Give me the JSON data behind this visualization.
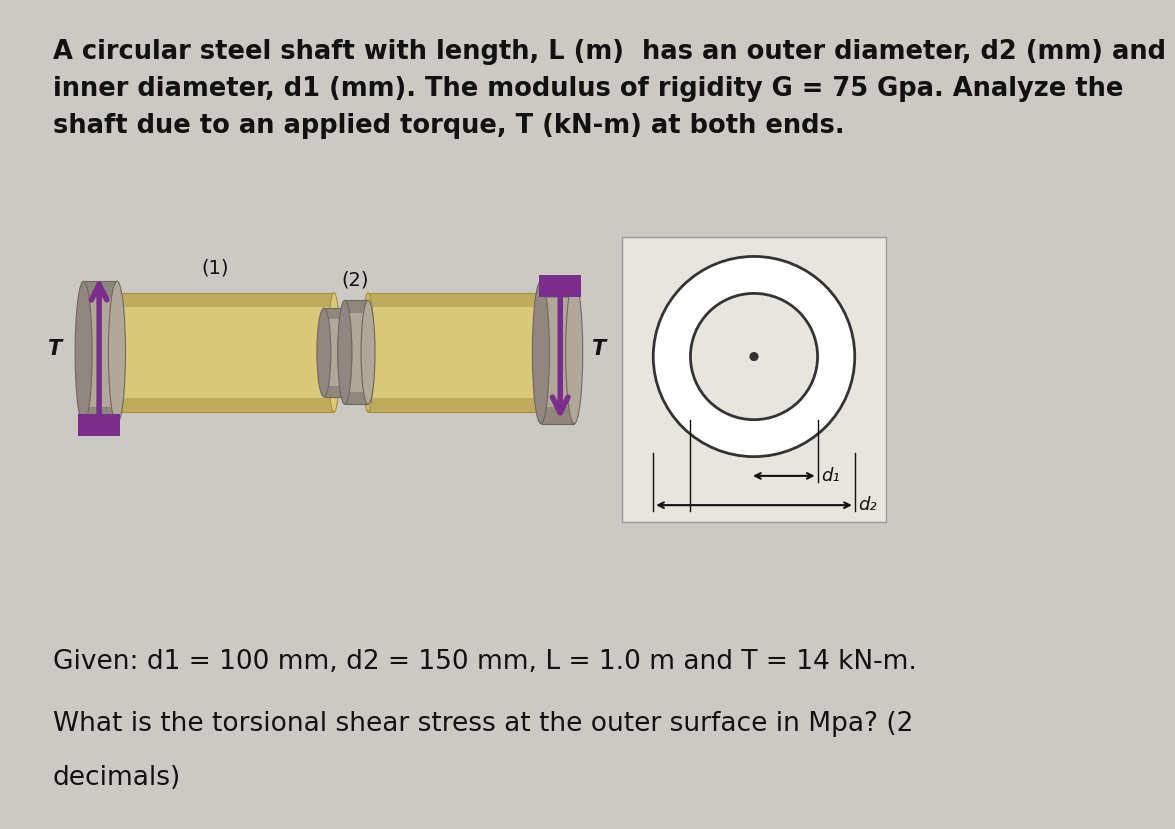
{
  "bg_color": "#ccc9c4",
  "title_text": "A circular steel shaft with length, L (m)  has an outer diameter, d2 (mm) and\ninner diameter, d1 (mm). The modulus of rigidity G = 75 Gpa. Analyze the\nshaft due to an applied torque, T (kN-m) at both ends.",
  "given_text": "Given: d1 = 100 mm, d2 = 150 mm, L = 1.0 m and T = 14 kN-m.",
  "question_line1": "What is the torsional shear stress at the outer surface in Mpa? (2",
  "question_line2": "decimals)",
  "arrow_color": "#7b2d8b",
  "label_1": "(1)",
  "label_2": "(2)",
  "label_T": "T",
  "label_d1": "d₁",
  "label_d2": "d₂",
  "shaft_tan_light": "#d8c878",
  "shaft_tan_mid": "#c8b860",
  "shaft_tan_dark": "#a89040",
  "shaft_gray_light": "#b0a898",
  "shaft_gray_mid": "#908880",
  "shaft_gray_dark": "#706860",
  "cross_box_bg": "#c8c4be",
  "cross_box_fg": "#e8e4de"
}
